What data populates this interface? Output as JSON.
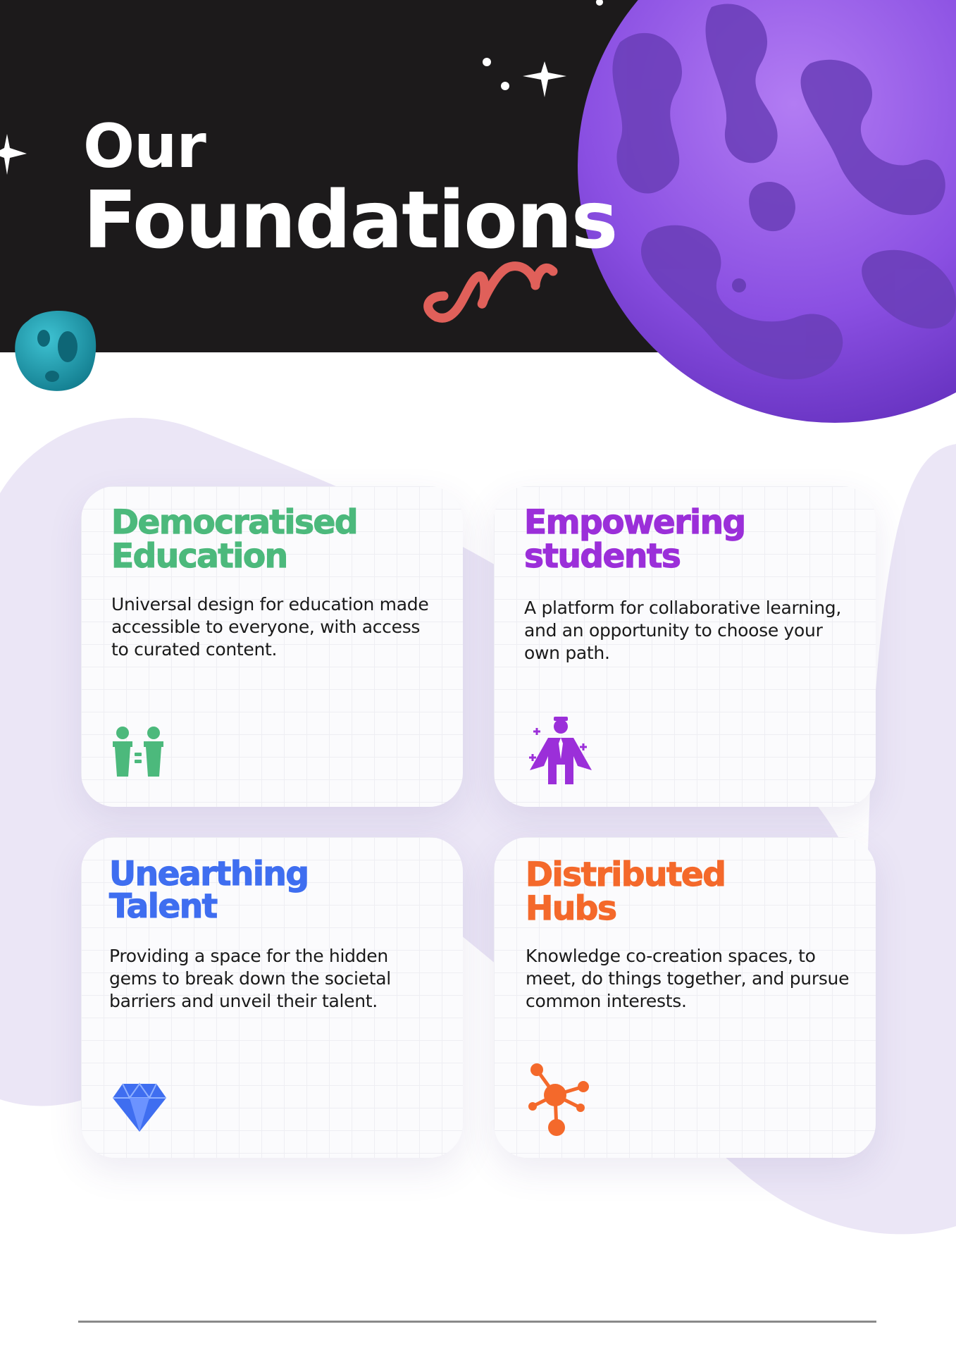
{
  "header": {
    "title_line1": "Our",
    "title_line2": "Foundations",
    "background_color": "#1c1a1b",
    "decor_icons": [
      "planet-icon",
      "asteroid-icon",
      "sparkle-icon",
      "squiggle-icon"
    ]
  },
  "cards": [
    {
      "title": "Democratised\nEducation",
      "description": "Universal design for education made accessible to everyone, with access to curated content.",
      "color": "#4cb97c",
      "icon": "equality-people-icon"
    },
    {
      "title": "Empowering\nstudents",
      "description": "A platform for collaborative learning, and an opportunity to choose your own path.",
      "color": "#9b2fd9",
      "icon": "hero-person-icon"
    },
    {
      "title": "Unearthing\nTalent",
      "description": "Providing a space for the hidden gems to break down the societal barriers and unveil their talent.",
      "color": "#3f6ef0",
      "icon": "diamond-icon"
    },
    {
      "title": "Distributed\nHubs",
      "description": "Knowledge co-creation spaces, to meet, do things together, and pursue common interests.",
      "color": "#f4692b",
      "icon": "network-hub-icon"
    }
  ]
}
